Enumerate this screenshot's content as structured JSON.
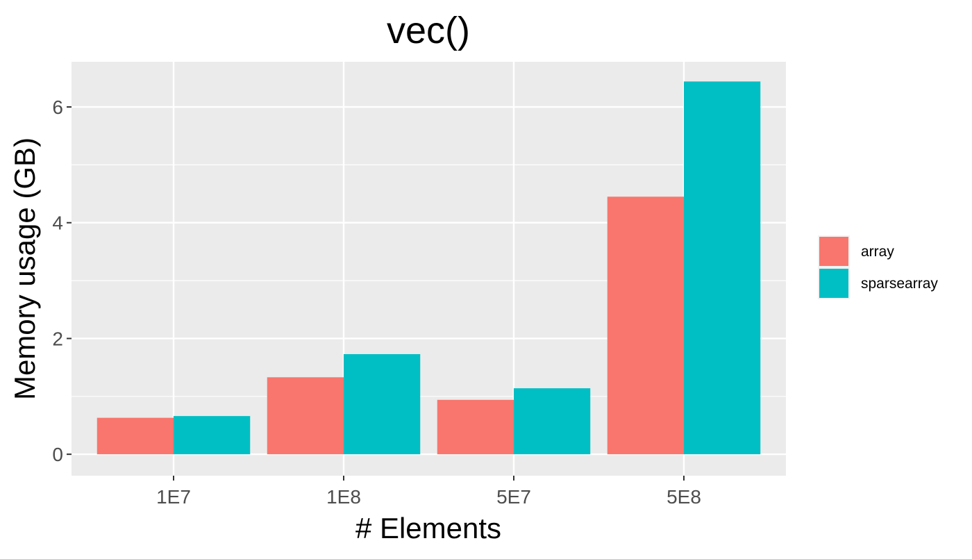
{
  "chart_data": {
    "type": "bar",
    "title": "vec()",
    "xlabel": "# Elements",
    "ylabel": "Memory usage (GB)",
    "categories": [
      "1E7",
      "1E8",
      "5E7",
      "5E8"
    ],
    "series": [
      {
        "name": "array",
        "values": [
          0.63,
          1.33,
          0.94,
          4.45
        ],
        "color": "#F8766D"
      },
      {
        "name": "sparsearray",
        "values": [
          0.66,
          1.73,
          1.14,
          6.44
        ],
        "color": "#00BFC4"
      }
    ],
    "yticks": [
      0,
      2,
      4,
      6
    ],
    "ylim": [
      -0.37,
      6.78
    ],
    "grid": true,
    "legend_position": "right",
    "colors": {
      "panel_background": "#EBEBEB",
      "gridline": "#FFFFFF",
      "tick_text": "#4D4D4D",
      "axis_title": "#000000"
    }
  }
}
